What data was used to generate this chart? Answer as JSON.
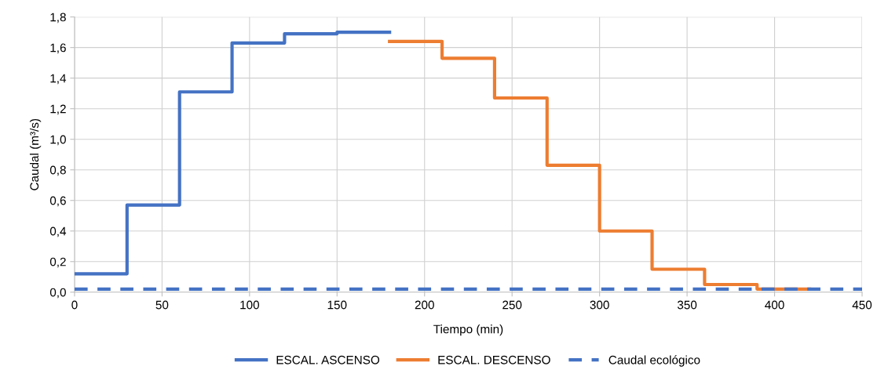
{
  "chart_data": {
    "type": "step",
    "xlabel": "Tiempo (min)",
    "ylabel": "Caudal (m³/s)",
    "xlim": [
      0,
      450
    ],
    "xticks": [
      0,
      50,
      100,
      150,
      200,
      250,
      300,
      350,
      400,
      450
    ],
    "ylim": [
      0,
      1.8
    ],
    "yticks": [
      {
        "value": 0,
        "label": "0,0"
      },
      {
        "value": 0.2,
        "label": "0,2"
      },
      {
        "value": 0.4,
        "label": "0,4"
      },
      {
        "value": 0.6,
        "label": "0,6"
      },
      {
        "value": 0.8,
        "label": "0,8"
      },
      {
        "value": 1.0,
        "label": "1,0"
      },
      {
        "value": 1.2,
        "label": "1,2"
      },
      {
        "value": 1.4,
        "label": "1,4"
      },
      {
        "value": 1.6,
        "label": "1,6"
      },
      {
        "value": 1.8,
        "label": "1,8"
      }
    ],
    "grid": true,
    "legend": "bottom",
    "marker": "none",
    "series": [
      {
        "name": "ESCAL. ASCENSO",
        "color": "#4472c4",
        "line_style": "solid",
        "x": [
          0,
          30,
          60,
          90,
          120,
          150,
          180
        ],
        "values": [
          0.12,
          0.57,
          1.31,
          1.63,
          1.69,
          1.7,
          1.7
        ]
      },
      {
        "name": "ESCAL. DESCENSO",
        "color": "#ed7d31",
        "line_style": "solid",
        "x": [
          180,
          210,
          240,
          270,
          300,
          330,
          360,
          390,
          420
        ],
        "values": [
          1.64,
          1.53,
          1.27,
          0.83,
          0.4,
          0.15,
          0.05,
          0.02,
          0.02
        ]
      },
      {
        "name": "Caudal ecológico",
        "type": "line",
        "color": "#4472c4",
        "line_style": "dashed",
        "x": [
          0,
          450
        ],
        "values": [
          0.02,
          0.02
        ]
      }
    ]
  }
}
